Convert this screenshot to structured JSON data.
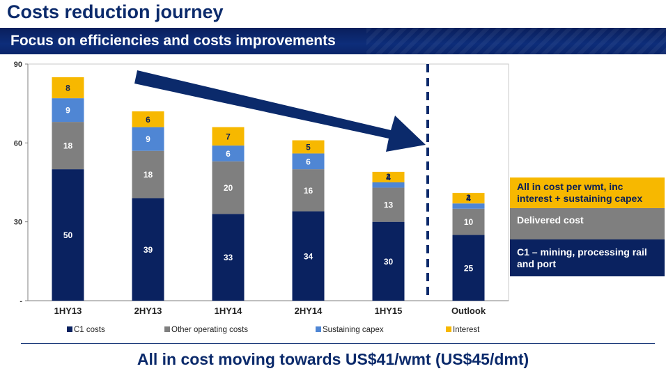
{
  "header": {
    "title": "Costs reduction journey",
    "subtitle": "Focus on efficiencies and costs improvements"
  },
  "side_legend": {
    "all_in": "All in cost per wmt, inc interest + sustaining capex",
    "delivered": "Delivered cost",
    "c1": "C1 – mining, processing rail and port"
  },
  "footer": {
    "text": "All in cost moving towards US$41/wmt (US$45/dmt)"
  },
  "colors": {
    "c1": "#0a2260",
    "other": "#7f7f7f",
    "capex": "#4f86d4",
    "interest": "#f7b800",
    "arrow": "#0b2a6b"
  },
  "chart_data": {
    "type": "bar",
    "stacked": true,
    "categories": [
      "1HY13",
      "2HY13",
      "1HY14",
      "2HY14",
      "1HY15",
      "Outlook"
    ],
    "series": [
      {
        "name": "C1 costs",
        "values": [
          50,
          39,
          33,
          34,
          30,
          25
        ]
      },
      {
        "name": "Other operating costs",
        "values": [
          18,
          18,
          20,
          16,
          13,
          10
        ]
      },
      {
        "name": "Sustaining capex",
        "values": [
          9,
          9,
          6,
          6,
          2,
          2
        ]
      },
      {
        "name": "Interest",
        "values": [
          8,
          6,
          7,
          5,
          4,
          4
        ]
      }
    ],
    "ylim": [
      0,
      90
    ],
    "yticks": [
      "-",
      "30",
      "60",
      "90"
    ],
    "legend_position": "bottom",
    "grid": false
  }
}
